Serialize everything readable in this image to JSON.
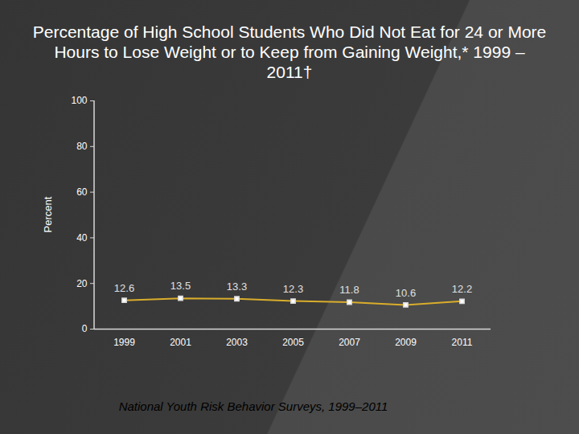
{
  "chart_data": {
    "type": "line",
    "title": "Percentage of High School Students Who Did Not Eat for 24 or More Hours to Lose Weight or to Keep from Gaining Weight,* 1999 – 2011†",
    "caption": "National Youth Risk Behavior Surveys, 1999–2011",
    "y_label": "Percent",
    "categories": [
      "1999",
      "2001",
      "2003",
      "2005",
      "2007",
      "2009",
      "2011"
    ],
    "values": [
      12.6,
      13.5,
      13.3,
      12.3,
      11.8,
      10.6,
      12.2
    ],
    "color": "#d9ad2b",
    "marker": "square",
    "data_labels": true,
    "ylim": [
      0,
      100
    ],
    "yticks": [
      0,
      20,
      40,
      60,
      80,
      100
    ],
    "grid": false
  }
}
